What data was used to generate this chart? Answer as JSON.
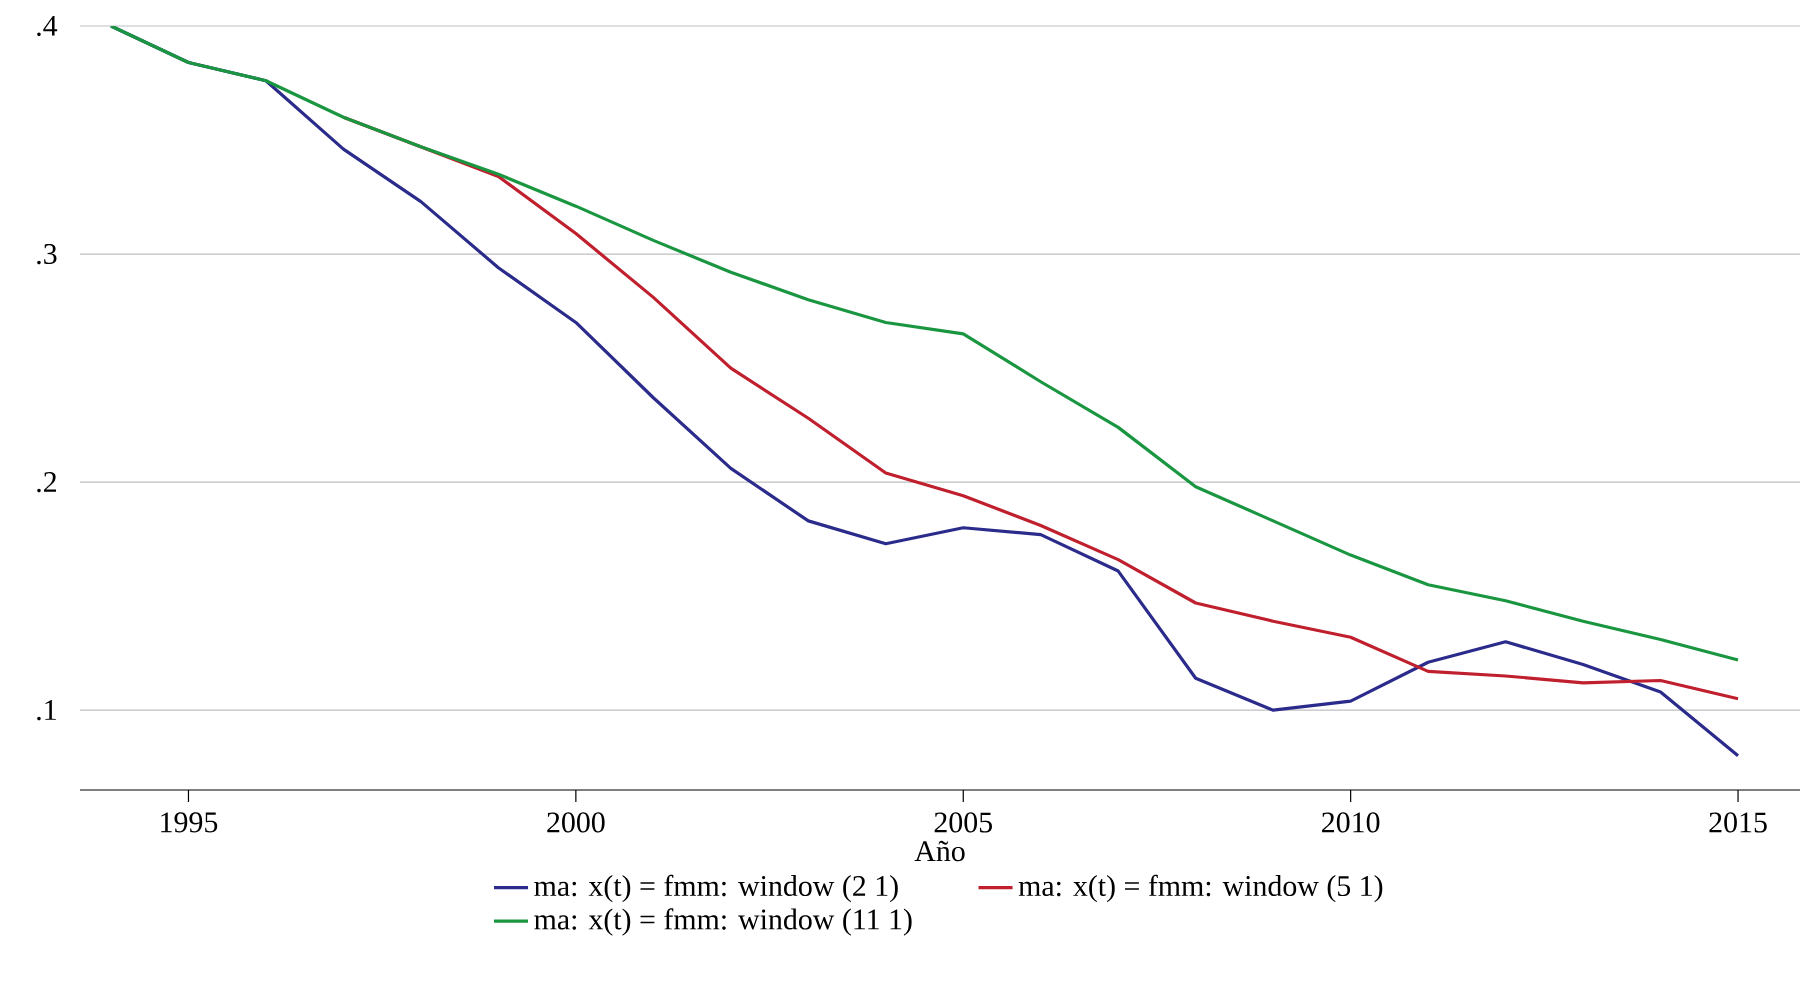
{
  "chart_data": {
    "type": "line",
    "xlabel": "Año",
    "x": [
      1994,
      1995,
      1996,
      1997,
      1998,
      1999,
      2000,
      2001,
      2002,
      2003,
      2004,
      2005,
      2006,
      2007,
      2008,
      2009,
      2010,
      2011,
      2012,
      2013,
      2014,
      2015
    ],
    "series": [
      {
        "name": "ma: x(t) = fmm: window (2 1)",
        "color": "#2b2b8c",
        "values": [
          0.4,
          0.384,
          0.376,
          0.346,
          0.323,
          0.294,
          0.27,
          0.237,
          0.206,
          0.183,
          0.173,
          0.18,
          0.177,
          0.161,
          0.114,
          0.1,
          0.104,
          0.121,
          0.13,
          0.12,
          0.108,
          0.08
        ]
      },
      {
        "name": "ma: x(t) = fmm: window (5 1)",
        "color": "#c0202e",
        "values": [
          null,
          null,
          null,
          0.36,
          0.347,
          0.334,
          0.309,
          0.281,
          0.25,
          0.228,
          0.204,
          0.194,
          0.181,
          0.166,
          0.147,
          0.139,
          0.132,
          0.117,
          0.115,
          0.112,
          0.113,
          0.105
        ]
      },
      {
        "name": "ma: x(t) = fmm: window (11 1)",
        "color": "#1a9641",
        "values": [
          0.4,
          0.384,
          0.376,
          0.36,
          0.347,
          0.335,
          0.321,
          0.306,
          0.292,
          0.28,
          0.27,
          0.265,
          0.244,
          0.224,
          0.198,
          0.183,
          0.168,
          0.155,
          0.148,
          0.139,
          0.131,
          0.122
        ]
      }
    ],
    "xlim": [
      1993.6,
      2015.8
    ],
    "xticks": [
      1995,
      2000,
      2005,
      2010,
      2015
    ],
    "ylim": [
      0.065,
      0.4
    ],
    "yticks": [
      {
        "value": 0.1,
        "label": ".1"
      },
      {
        "value": 0.2,
        "label": ".2"
      },
      {
        "value": 0.3,
        "label": ".3"
      },
      {
        "value": 0.4,
        "label": ".4"
      }
    ],
    "grid": "y",
    "legend": "bottom",
    "marker": "none",
    "line_style": "solid"
  }
}
